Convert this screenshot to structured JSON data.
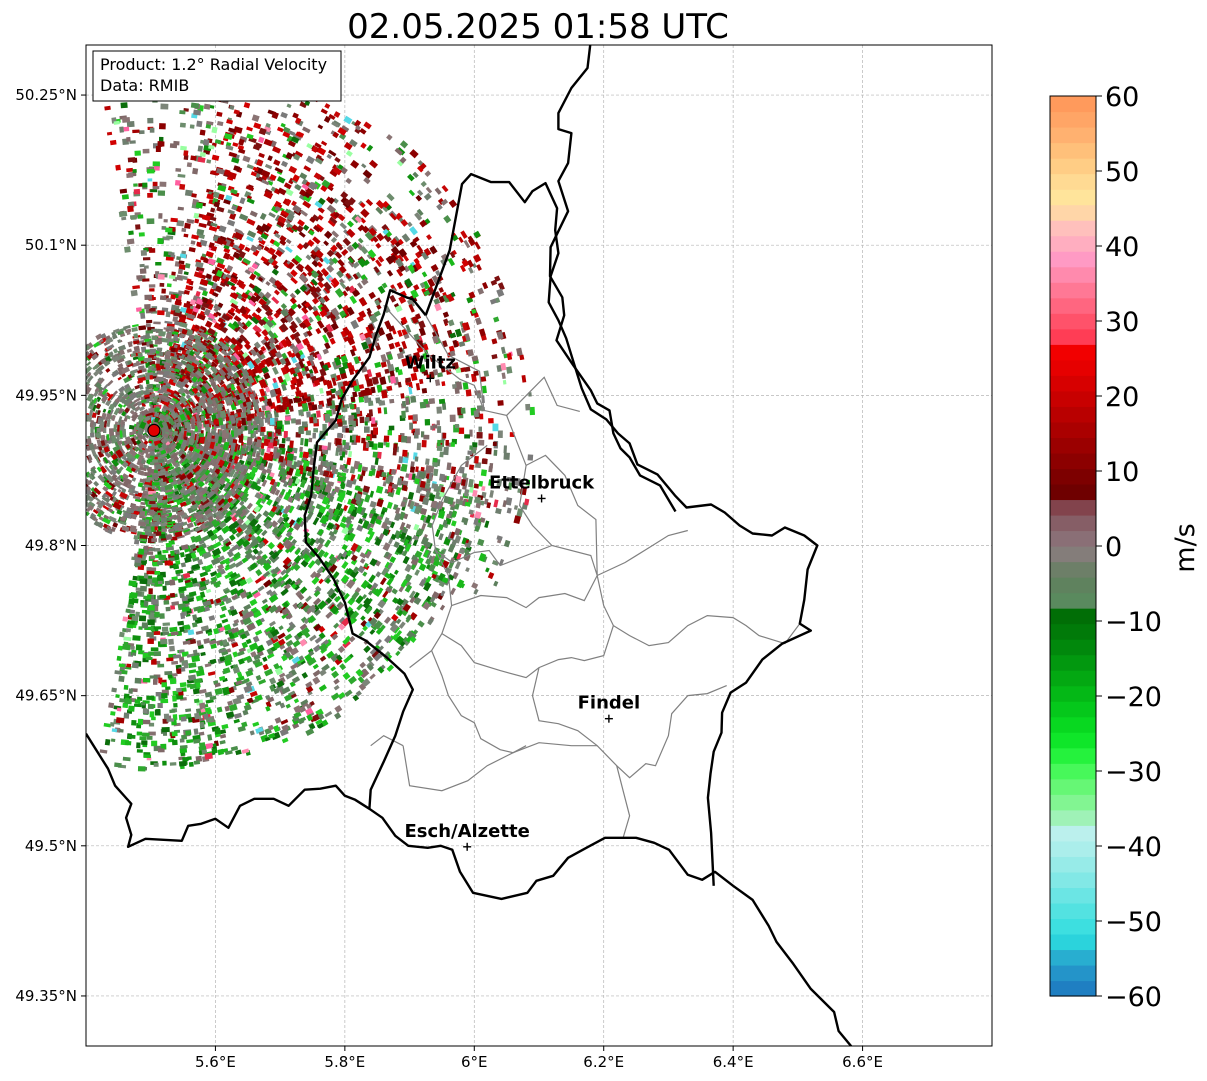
{
  "title": "02.05.2025 01:58 UTC",
  "info_box": {
    "product": "Product: 1.2° Radial Velocity",
    "source": "Data: RMIB"
  },
  "map": {
    "lon_range": [
      5.4,
      6.8
    ],
    "lat_range": [
      49.3,
      50.3
    ],
    "lon_ticks": [
      {
        "value": 5.6,
        "label": "5.6°E"
      },
      {
        "value": 5.8,
        "label": "5.8°E"
      },
      {
        "value": 6.0,
        "label": "6°E"
      },
      {
        "value": 6.2,
        "label": "6.2°E"
      },
      {
        "value": 6.4,
        "label": "6.4°E"
      },
      {
        "value": 6.6,
        "label": "6.6°E"
      }
    ],
    "lat_ticks": [
      {
        "value": 50.25,
        "label": "50.25°N"
      },
      {
        "value": 50.1,
        "label": "50.1°N"
      },
      {
        "value": 49.95,
        "label": "49.95°N"
      },
      {
        "value": 49.8,
        "label": "49.8°N"
      },
      {
        "value": 49.65,
        "label": "49.65°N"
      },
      {
        "value": 49.5,
        "label": "49.5°N"
      },
      {
        "value": 49.35,
        "label": "49.35°N"
      }
    ],
    "gridlines": true,
    "radar_site": {
      "lon": 5.505,
      "lat": 49.915,
      "color": "#e00000"
    },
    "cities": [
      {
        "name": "Wiltz",
        "lon": 5.932,
        "lat": 49.967
      },
      {
        "name": "Ettelbruck",
        "lon": 6.104,
        "lat": 49.847
      },
      {
        "name": "Findel",
        "lon": 6.208,
        "lat": 49.627
      },
      {
        "name": "Esch/Alzette",
        "lon": 5.989,
        "lat": 49.499
      }
    ],
    "national_border": [
      [
        5.4,
        49.612
      ],
      [
        5.434,
        49.577
      ],
      [
        5.445,
        49.56
      ],
      [
        5.47,
        49.542
      ],
      [
        5.462,
        49.528
      ],
      [
        5.47,
        49.511
      ],
      [
        5.465,
        49.499
      ],
      [
        5.492,
        49.507
      ],
      [
        5.548,
        49.505
      ],
      [
        5.558,
        49.52
      ],
      [
        5.578,
        49.522
      ],
      [
        5.6,
        49.527
      ],
      [
        5.62,
        49.518
      ],
      [
        5.638,
        49.54
      ],
      [
        5.66,
        49.547
      ],
      [
        5.69,
        49.547
      ],
      [
        5.713,
        49.54
      ],
      [
        5.738,
        49.556
      ],
      [
        5.762,
        49.557
      ],
      [
        5.786,
        49.56
      ],
      [
        5.8,
        49.55
      ],
      [
        5.816,
        49.546
      ],
      [
        5.838,
        49.537
      ],
      [
        5.858,
        49.528
      ],
      [
        5.878,
        49.51
      ],
      [
        5.898,
        49.5
      ],
      [
        5.928,
        49.498
      ],
      [
        5.948,
        49.5
      ],
      [
        5.966,
        49.496
      ],
      [
        5.978,
        49.474
      ],
      [
        5.998,
        49.453
      ],
      [
        6.042,
        49.447
      ],
      [
        6.082,
        49.453
      ],
      [
        6.096,
        49.465
      ],
      [
        6.122,
        49.47
      ],
      [
        6.145,
        49.488
      ],
      [
        6.176,
        49.499
      ],
      [
        6.202,
        49.508
      ],
      [
        6.25,
        49.508
      ],
      [
        6.278,
        49.503
      ],
      [
        6.301,
        49.496
      ],
      [
        6.33,
        49.471
      ],
      [
        6.352,
        49.466
      ],
      [
        6.372,
        49.474
      ],
      [
        6.4,
        49.46
      ],
      [
        6.43,
        49.446
      ],
      [
        6.455,
        49.42
      ],
      [
        6.467,
        49.404
      ],
      [
        6.493,
        49.382
      ],
      [
        6.52,
        49.357
      ],
      [
        6.556,
        49.334
      ],
      [
        6.563,
        49.315
      ],
      [
        6.586,
        49.297
      ]
    ],
    "lux_east_border": [
      [
        5.925,
        50.03
      ],
      [
        5.962,
        50.095
      ],
      [
        5.981,
        50.161
      ],
      [
        5.995,
        50.171
      ],
      [
        6.026,
        50.163
      ],
      [
        6.054,
        50.163
      ],
      [
        6.078,
        50.143
      ],
      [
        6.09,
        50.154
      ],
      [
        6.11,
        50.162
      ],
      [
        6.128,
        50.137
      ],
      [
        6.125,
        50.115
      ],
      [
        6.13,
        50.092
      ],
      [
        6.118,
        50.069
      ],
      [
        6.115,
        50.043
      ],
      [
        6.13,
        50.025
      ],
      [
        6.142,
        50.007
      ],
      [
        6.154,
        49.982
      ],
      [
        6.166,
        49.957
      ],
      [
        6.18,
        49.936
      ],
      [
        6.204,
        49.926
      ],
      [
        6.222,
        49.912
      ],
      [
        6.24,
        49.902
      ],
      [
        6.252,
        49.881
      ],
      [
        6.283,
        49.871
      ],
      [
        6.31,
        49.85
      ],
      [
        6.328,
        49.838
      ],
      [
        6.366,
        49.841
      ],
      [
        6.387,
        49.833
      ],
      [
        6.41,
        49.82
      ],
      [
        6.43,
        49.812
      ],
      [
        6.46,
        49.81
      ],
      [
        6.48,
        49.818
      ],
      [
        6.51,
        49.81
      ],
      [
        6.53,
        49.8
      ],
      [
        6.515,
        49.776
      ],
      [
        6.51,
        49.746
      ],
      [
        6.503,
        49.722
      ],
      [
        6.52,
        49.715
      ],
      [
        6.476,
        49.702
      ],
      [
        6.445,
        49.686
      ],
      [
        6.42,
        49.663
      ],
      [
        6.396,
        49.653
      ],
      [
        6.383,
        49.633
      ],
      [
        6.382,
        49.613
      ],
      [
        6.37,
        49.594
      ],
      [
        6.365,
        49.572
      ],
      [
        6.361,
        49.548
      ],
      [
        6.366,
        49.513
      ],
      [
        6.37,
        49.46
      ]
    ],
    "belgium_east_border": [
      [
        6.18,
        50.305
      ],
      [
        6.175,
        50.277
      ],
      [
        6.15,
        50.257
      ],
      [
        6.13,
        50.232
      ],
      [
        6.13,
        50.216
      ],
      [
        6.15,
        50.212
      ],
      [
        6.145,
        50.182
      ],
      [
        6.13,
        50.164
      ],
      [
        6.145,
        50.134
      ],
      [
        6.118,
        50.098
      ],
      [
        6.117,
        50.069
      ],
      [
        6.136,
        50.048
      ],
      [
        6.139,
        50.03
      ],
      [
        6.127,
        50.005
      ],
      [
        6.153,
        49.98
      ],
      [
        6.18,
        49.955
      ],
      [
        6.19,
        49.942
      ],
      [
        6.209,
        49.935
      ],
      [
        6.215,
        49.912
      ],
      [
        6.226,
        49.897
      ],
      [
        6.24,
        49.888
      ],
      [
        6.256,
        49.87
      ],
      [
        6.287,
        49.86
      ],
      [
        6.311,
        49.834
      ]
    ],
    "lux_west_border": [
      [
        5.925,
        50.03
      ],
      [
        5.905,
        50.046
      ],
      [
        5.895,
        50.048
      ],
      [
        5.87,
        50.055
      ],
      [
        5.86,
        50.031
      ],
      [
        5.848,
        50.01
      ],
      [
        5.838,
        49.988
      ],
      [
        5.812,
        49.965
      ],
      [
        5.795,
        49.946
      ],
      [
        5.786,
        49.925
      ],
      [
        5.757,
        49.903
      ],
      [
        5.752,
        49.878
      ],
      [
        5.748,
        49.85
      ],
      [
        5.738,
        49.83
      ],
      [
        5.74,
        49.803
      ],
      [
        5.76,
        49.788
      ],
      [
        5.783,
        49.766
      ],
      [
        5.8,
        49.743
      ],
      [
        5.812,
        49.712
      ],
      [
        5.832,
        49.705
      ],
      [
        5.865,
        49.688
      ],
      [
        5.892,
        49.672
      ],
      [
        5.905,
        49.656
      ],
      [
        5.89,
        49.634
      ],
      [
        5.878,
        49.61
      ],
      [
        5.86,
        49.584
      ],
      [
        5.84,
        49.556
      ],
      [
        5.838,
        49.537
      ]
    ],
    "cantons": [
      [
        [
          5.86,
          50.04
        ],
        [
          5.93,
          49.99
        ],
        [
          5.978,
          49.966
        ],
        [
          6.0,
          49.96
        ],
        [
          6.015,
          49.935
        ],
        [
          6.05,
          49.93
        ],
        [
          6.08,
          49.88
        ],
        [
          6.07,
          49.84
        ],
        [
          6.09,
          49.82
        ],
        [
          6.12,
          49.8
        ],
        [
          6.18,
          49.79
        ],
        [
          6.19,
          49.77
        ]
      ],
      [
        [
          5.925,
          50.03
        ],
        [
          5.96,
          49.99
        ],
        [
          6.008,
          49.974
        ],
        [
          6.015,
          49.935
        ]
      ],
      [
        [
          6.05,
          49.93
        ],
        [
          6.108,
          49.968
        ],
        [
          6.128,
          49.94
        ],
        [
          6.163,
          49.934
        ]
      ],
      [
        [
          6.08,
          49.88
        ],
        [
          6.11,
          49.89
        ],
        [
          6.14,
          49.87
        ],
        [
          6.16,
          49.84
        ],
        [
          6.188,
          49.826
        ],
        [
          6.19,
          49.77
        ]
      ],
      [
        [
          6.19,
          49.77
        ],
        [
          6.233,
          49.783
        ],
        [
          6.268,
          49.797
        ],
        [
          6.3,
          49.81
        ],
        [
          6.33,
          49.815
        ]
      ],
      [
        [
          6.02,
          49.9
        ],
        [
          5.98,
          49.88
        ],
        [
          5.95,
          49.845
        ],
        [
          5.935,
          49.82
        ],
        [
          5.94,
          49.795
        ],
        [
          5.966,
          49.783
        ],
        [
          6.0,
          49.793
        ],
        [
          6.023,
          49.795
        ],
        [
          6.04,
          49.78
        ],
        [
          6.08,
          49.79
        ],
        [
          6.12,
          49.8
        ]
      ],
      [
        [
          5.94,
          49.795
        ],
        [
          5.96,
          49.77
        ],
        [
          5.965,
          49.74
        ],
        [
          5.95,
          49.712
        ],
        [
          5.934,
          49.695
        ],
        [
          5.9,
          49.678
        ]
      ],
      [
        [
          5.965,
          49.74
        ],
        [
          6.01,
          49.75
        ],
        [
          6.05,
          49.748
        ],
        [
          6.08,
          49.738
        ],
        [
          6.1,
          49.748
        ],
        [
          6.14,
          49.752
        ],
        [
          6.17,
          49.745
        ],
        [
          6.19,
          49.77
        ]
      ],
      [
        [
          6.19,
          49.77
        ],
        [
          6.2,
          49.74
        ],
        [
          6.215,
          49.72
        ],
        [
          6.24,
          49.71
        ],
        [
          6.27,
          49.7
        ],
        [
          6.3,
          49.703
        ],
        [
          6.33,
          49.72
        ],
        [
          6.36,
          49.73
        ],
        [
          6.4,
          49.728
        ],
        [
          6.42,
          49.72
        ],
        [
          6.44,
          49.71
        ],
        [
          6.48,
          49.702
        ],
        [
          6.503,
          49.722
        ]
      ],
      [
        [
          5.95,
          49.712
        ],
        [
          5.98,
          49.7
        ],
        [
          6.0,
          49.683
        ],
        [
          6.04,
          49.675
        ],
        [
          6.08,
          49.668
        ],
        [
          6.1,
          49.678
        ],
        [
          6.13,
          49.686
        ],
        [
          6.15,
          49.688
        ],
        [
          6.17,
          49.685
        ],
        [
          6.2,
          49.69
        ],
        [
          6.215,
          49.72
        ]
      ],
      [
        [
          5.934,
          49.695
        ],
        [
          5.95,
          49.67
        ],
        [
          5.96,
          49.65
        ],
        [
          5.98,
          49.63
        ],
        [
          6.0,
          49.623
        ],
        [
          6.01,
          49.607
        ],
        [
          6.04,
          49.596
        ],
        [
          6.06,
          49.593
        ],
        [
          6.08,
          49.6
        ]
      ],
      [
        [
          6.1,
          49.678
        ],
        [
          6.09,
          49.65
        ],
        [
          6.1,
          49.625
        ],
        [
          6.13,
          49.622
        ],
        [
          6.16,
          49.615
        ],
        [
          6.19,
          49.6
        ],
        [
          6.22,
          49.58
        ],
        [
          6.24,
          49.568
        ],
        [
          6.265,
          49.582
        ],
        [
          6.28,
          49.58
        ],
        [
          6.3,
          49.61
        ],
        [
          6.305,
          49.632
        ],
        [
          6.33,
          49.65
        ],
        [
          6.36,
          49.652
        ],
        [
          6.39,
          49.66
        ]
      ],
      [
        [
          5.89,
          49.6
        ],
        [
          5.9,
          49.56
        ],
        [
          5.95,
          49.555
        ],
        [
          5.99,
          49.565
        ],
        [
          6.02,
          49.58
        ],
        [
          6.06,
          49.593
        ],
        [
          6.1,
          49.603
        ],
        [
          6.15,
          49.6
        ],
        [
          6.19,
          49.6
        ]
      ],
      [
        [
          6.22,
          49.58
        ],
        [
          6.23,
          49.555
        ],
        [
          6.24,
          49.53
        ],
        [
          6.23,
          49.508
        ]
      ],
      [
        [
          5.89,
          49.6
        ],
        [
          5.86,
          49.61
        ],
        [
          5.84,
          49.6
        ]
      ]
    ]
  },
  "colorbar": {
    "vmin": -60,
    "vmax": 60,
    "ticks": [
      {
        "value": 60,
        "label": "60"
      },
      {
        "value": 50,
        "label": "50"
      },
      {
        "value": 40,
        "label": "40"
      },
      {
        "value": 30,
        "label": "30"
      },
      {
        "value": 20,
        "label": "20"
      },
      {
        "value": 10,
        "label": "10"
      },
      {
        "value": 0,
        "label": "0"
      },
      {
        "value": -10,
        "label": "−10"
      },
      {
        "value": -20,
        "label": "−20"
      },
      {
        "value": -30,
        "label": "−30"
      },
      {
        "value": -40,
        "label": "−40"
      },
      {
        "value": -50,
        "label": "−50"
      },
      {
        "value": -60,
        "label": "−60"
      }
    ],
    "label": "m/s",
    "colors": [
      "#1f7fc2",
      "#2494c9",
      "#28aed0",
      "#2bd3dc",
      "#3ddfe0",
      "#53e2e1",
      "#6be5e4",
      "#82e8e6",
      "#97ebe8",
      "#abeeeb",
      "#bbf0ed",
      "#9ff2b7",
      "#82f592",
      "#66f775",
      "#47f85a",
      "#25f23d",
      "#0fe629",
      "#08d820",
      "#05c81b",
      "#04b816",
      "#03a812",
      "#02980f",
      "#01880c",
      "#017a09",
      "#016e06",
      "#5a8a5e",
      "#5f825e",
      "#6d7f68",
      "#847d7a",
      "#8a6f76",
      "#865e66",
      "#82434c",
      "#6f0000",
      "#7d0000",
      "#8c0000",
      "#9b0000",
      "#aa0000",
      "#b90000",
      "#c80000",
      "#d70000",
      "#e60000",
      "#f20000",
      "#ff3d55",
      "#ff526a",
      "#ff6680",
      "#ff7895",
      "#ff8aad",
      "#ff9ac4",
      "#ffaec0",
      "#ffc0bc",
      "#ffd6a8",
      "#ffe49b",
      "#ffda93",
      "#ffcd85",
      "#ffc07a",
      "#ffb170",
      "#ffa566",
      "#ff9a5c"
    ]
  },
  "radar_palette": {
    "gray": [
      "#7a7a7a",
      "#8a7474",
      "#806868",
      "#6e7e6e",
      "#857070",
      "#7c8579",
      "#6d8d6d"
    ],
    "green": [
      "#0f8f0f",
      "#1ab81a",
      "#0b6e0b",
      "#22cc22",
      "#4b8f4b",
      "#5c7f5c",
      "#2ea82e"
    ],
    "red": [
      "#8c0000",
      "#a30000",
      "#6f0000",
      "#b80000",
      "#c60606",
      "#7d1010",
      "#d10000"
    ],
    "accent": [
      "#ff5fa0",
      "#55d9e6",
      "#ff8ab0",
      "#98ffa0",
      "#e62a4a"
    ]
  }
}
